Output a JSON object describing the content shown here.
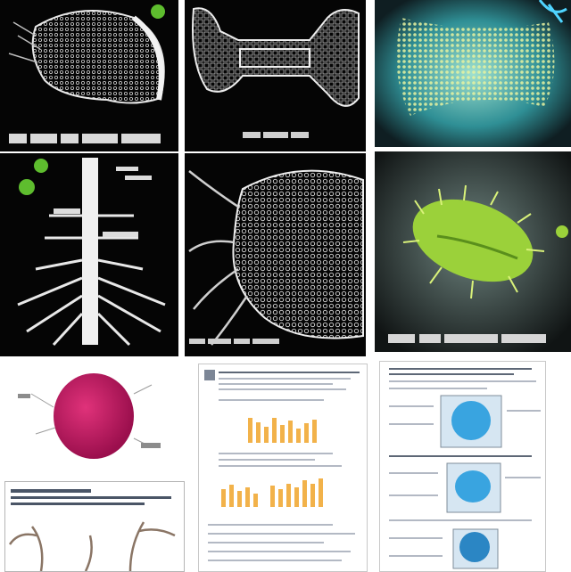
{
  "colors": {
    "dark_panel": "#050505",
    "bone_white": "#e8e8e8",
    "lime_green": "#9bd13a",
    "teal_glow": "#3fb3b0",
    "magenta": "#c21463",
    "cyan_blue": "#39a4e0",
    "bar_orange": "#f2b24a"
  },
  "icons": [
    "green-dot-icon",
    "blue-flourish-icon"
  ]
}
